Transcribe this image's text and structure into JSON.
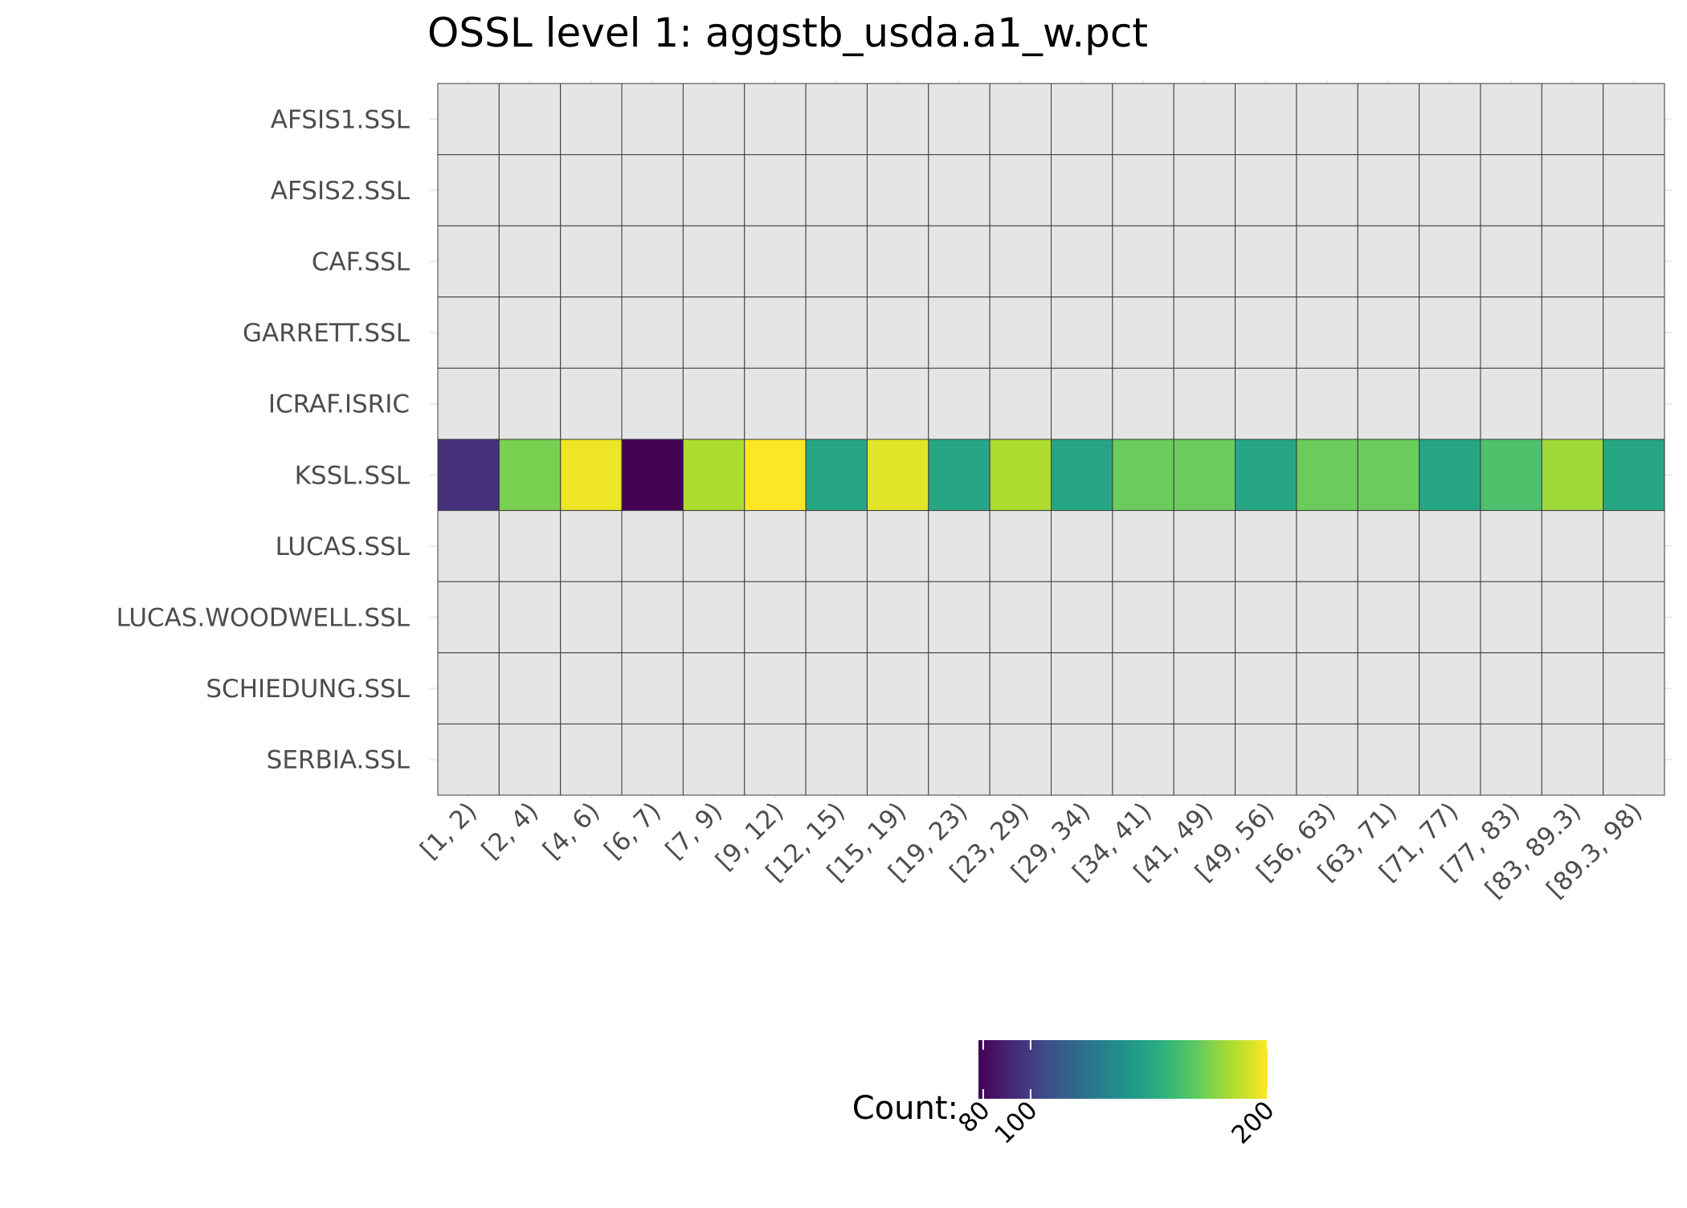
{
  "chart_data": {
    "type": "heatmap",
    "title": "OSSL level 1: aggstb_usda.a1_w.pct",
    "xlabel": "",
    "ylabel": "",
    "x_categories": [
      "[1, 2)",
      "[2, 4)",
      "[4, 6)",
      "[6, 7)",
      "[7, 9)",
      "[9, 12)",
      "[12, 15)",
      "[15, 19)",
      "[19, 23)",
      "[23, 29)",
      "[29, 34)",
      "[34, 41)",
      "[41, 49)",
      "[49, 56)",
      "[56, 63)",
      "[63, 71)",
      "[71, 77)",
      "[77, 83)",
      "[83, 89.3)",
      "[89.3, 98)"
    ],
    "y_categories": [
      "AFSIS1.SSL",
      "AFSIS2.SSL",
      "CAF.SSL",
      "GARRETT.SSL",
      "ICRAF.ISRIC",
      "KSSL.SSL",
      "LUCAS.SSL",
      "LUCAS.WOODWELL.SSL",
      "SCHIEDUNG.SSL",
      "SERBIA.SSL"
    ],
    "series": [
      {
        "name": "KSSL.SSL",
        "values": [
          95,
          175,
          197,
          78,
          185,
          200,
          150,
          195,
          150,
          185,
          150,
          172,
          172,
          150,
          172,
          172,
          150,
          165,
          182,
          150
        ]
      }
    ],
    "missing_fill": "#e5e5e5",
    "legend": {
      "title": "Count:",
      "position": "bottom",
      "min": 78,
      "max": 200,
      "ticks": [
        "80",
        "100",
        "200"
      ],
      "tick_values": [
        80,
        100,
        200
      ],
      "colormap": "viridis"
    },
    "grid": true
  }
}
